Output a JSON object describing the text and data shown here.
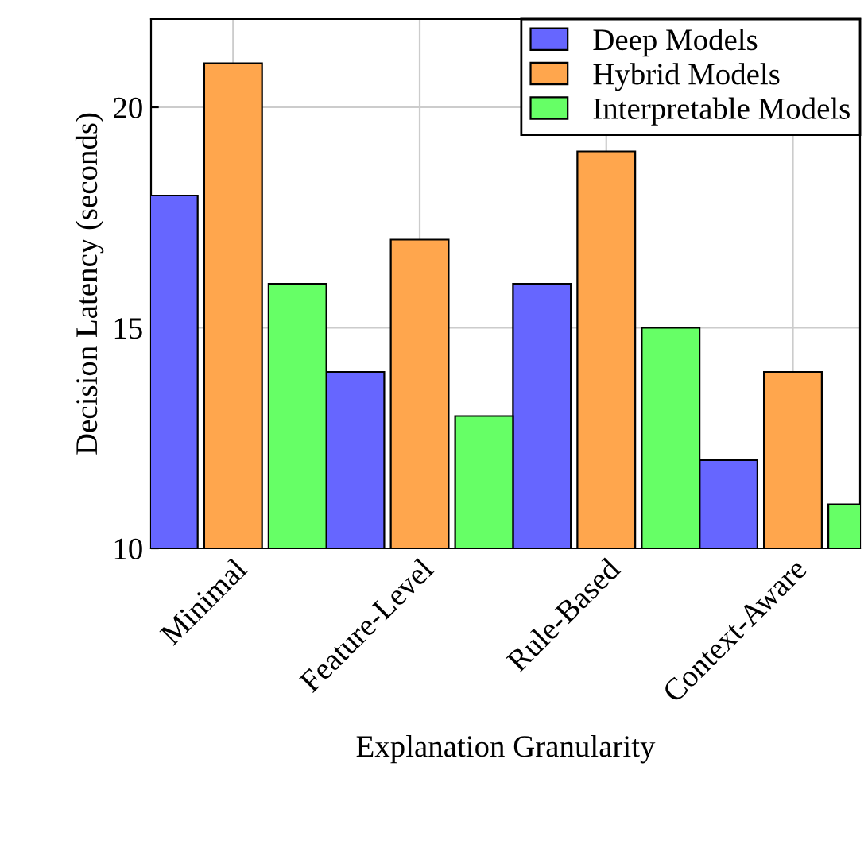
{
  "chart_data": {
    "type": "bar",
    "xlabel": "Explanation Granularity",
    "ylabel": "Decision Latency (seconds)",
    "categories": [
      "Minimal",
      "Feature-Level",
      "Rule-Based",
      "Context-Aware"
    ],
    "series": [
      {
        "name": "Deep Models",
        "color": "#6666ff",
        "values": [
          18,
          14,
          16,
          12
        ]
      },
      {
        "name": "Hybrid Models",
        "color": "#ffa64d",
        "values": [
          21,
          17,
          19,
          14
        ]
      },
      {
        "name": "Interpretable Models",
        "color": "#66ff66",
        "values": [
          16,
          13,
          15,
          11
        ]
      }
    ],
    "ylim": [
      10,
      22
    ],
    "yticks": [
      10,
      15,
      20
    ],
    "grid": true,
    "legend": "top right"
  }
}
